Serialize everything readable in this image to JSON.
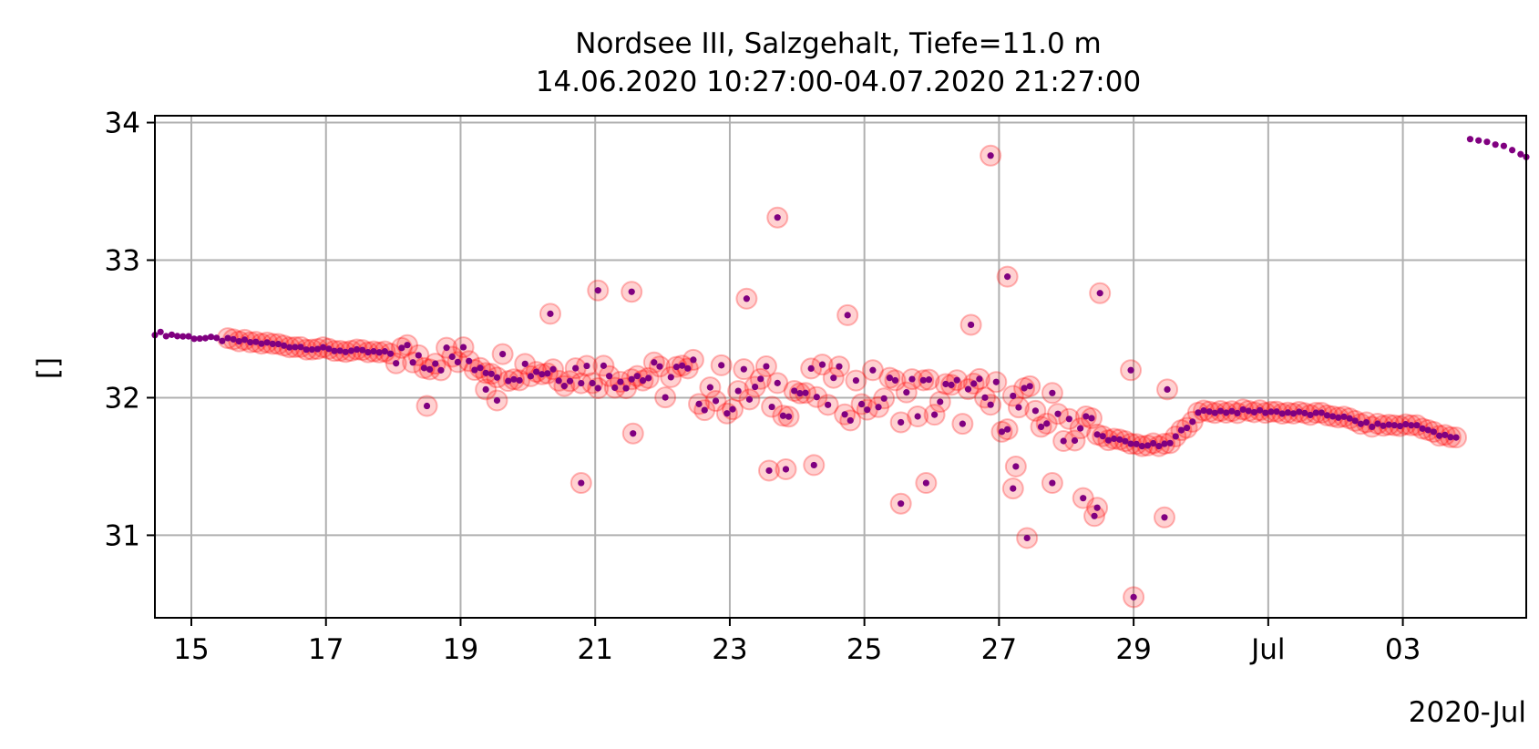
{
  "chart_data": {
    "type": "scatter",
    "title_lines": [
      "Nordsee III, Salzgehalt, Tiefe=11.0 m",
      "14.06.2020 10:27:00-04.07.2020 21:27:00"
    ],
    "xlabel": "",
    "ylabel": "[]",
    "x_offset_label": "2020-Jul",
    "xlim": [
      "2020-06-14T11:00",
      "2020-07-04T20:00"
    ],
    "ylim": [
      30.4,
      34.05
    ],
    "grid": true,
    "x_ticks": [
      {
        "date": "2020-06-15",
        "label": "15"
      },
      {
        "date": "2020-06-17",
        "label": "17"
      },
      {
        "date": "2020-06-19",
        "label": "19"
      },
      {
        "date": "2020-06-21",
        "label": "21"
      },
      {
        "date": "2020-06-23",
        "label": "23"
      },
      {
        "date": "2020-06-25",
        "label": "25"
      },
      {
        "date": "2020-06-27",
        "label": "27"
      },
      {
        "date": "2020-06-29",
        "label": "29"
      },
      {
        "date": "2020-07-01",
        "label": "Jul"
      },
      {
        "date": "2020-07-03",
        "label": "03"
      }
    ],
    "y_ticks": [
      31,
      32,
      33,
      34
    ],
    "colors": {
      "point": "#800080",
      "flag_ring": "#ff0000",
      "grid": "#b0b0b0"
    },
    "series": [
      {
        "role": "measurements",
        "trend": [
          {
            "x": "2020-06-14T11:00",
            "y": 32.47
          },
          {
            "x": "2020-06-15T00:00",
            "y": 32.44
          },
          {
            "x": "2020-06-16T00:00",
            "y": 32.4
          },
          {
            "x": "2020-06-17T00:00",
            "y": 32.35
          },
          {
            "x": "2020-06-18T00:00",
            "y": 32.32
          },
          {
            "x": "2020-06-19T00:00",
            "y": 32.28
          },
          {
            "x": "2020-06-20T00:00",
            "y": 32.22
          },
          {
            "x": "2020-06-21T00:00",
            "y": 32.18
          },
          {
            "x": "2020-06-22T00:00",
            "y": 32.15
          },
          {
            "x": "2020-06-23T00:00",
            "y": 32.05
          },
          {
            "x": "2020-06-24T00:00",
            "y": 32.05
          },
          {
            "x": "2020-06-25T00:00",
            "y": 32.03
          },
          {
            "x": "2020-06-26T00:00",
            "y": 32.0
          },
          {
            "x": "2020-06-27T00:00",
            "y": 31.95
          },
          {
            "x": "2020-06-28T00:00",
            "y": 31.85
          },
          {
            "x": "2020-06-28T12:00",
            "y": 31.72
          },
          {
            "x": "2020-06-29T00:00",
            "y": 31.66
          },
          {
            "x": "2020-06-29T12:00",
            "y": 31.65
          },
          {
            "x": "2020-06-30T00:00",
            "y": 31.9
          },
          {
            "x": "2020-07-01T00:00",
            "y": 31.9
          },
          {
            "x": "2020-07-02T00:00",
            "y": 31.87
          },
          {
            "x": "2020-07-02T12:00",
            "y": 31.8
          },
          {
            "x": "2020-07-03T06:00",
            "y": 31.8
          },
          {
            "x": "2020-07-03T12:00",
            "y": 31.73
          },
          {
            "x": "2020-07-03T20:00",
            "y": 31.7
          }
        ],
        "scatter_band": [
          {
            "from": "2020-06-18T00:00",
            "to": "2020-06-22T00:00",
            "spread": 0.12
          },
          {
            "from": "2020-06-22T00:00",
            "to": "2020-06-28T12:00",
            "spread": 0.2
          }
        ],
        "outliers": [
          {
            "x": "2020-06-18T12:00",
            "y": 31.94
          },
          {
            "x": "2020-06-19T09:00",
            "y": 32.06
          },
          {
            "x": "2020-06-19T13:00",
            "y": 31.98
          },
          {
            "x": "2020-06-20T08:00",
            "y": 32.61
          },
          {
            "x": "2020-06-20T19:00",
            "y": 31.38
          },
          {
            "x": "2020-06-21T01:00",
            "y": 32.78
          },
          {
            "x": "2020-06-21T13:00",
            "y": 32.77
          },
          {
            "x": "2020-06-21T13:30",
            "y": 31.74
          },
          {
            "x": "2020-06-23T06:00",
            "y": 32.72
          },
          {
            "x": "2020-06-23T14:00",
            "y": 31.47
          },
          {
            "x": "2020-06-23T17:00",
            "y": 33.31
          },
          {
            "x": "2020-06-23T20:00",
            "y": 31.48
          },
          {
            "x": "2020-06-24T06:00",
            "y": 31.51
          },
          {
            "x": "2020-06-24T18:00",
            "y": 32.6
          },
          {
            "x": "2020-06-25T13:00",
            "y": 31.23
          },
          {
            "x": "2020-06-25T22:00",
            "y": 31.38
          },
          {
            "x": "2020-06-26T14:00",
            "y": 32.53
          },
          {
            "x": "2020-06-26T21:00",
            "y": 33.76
          },
          {
            "x": "2020-06-27T03:00",
            "y": 32.88
          },
          {
            "x": "2020-06-27T05:00",
            "y": 31.34
          },
          {
            "x": "2020-06-27T06:00",
            "y": 31.5
          },
          {
            "x": "2020-06-27T10:00",
            "y": 30.98
          },
          {
            "x": "2020-06-27T19:00",
            "y": 31.38
          },
          {
            "x": "2020-06-28T06:00",
            "y": 31.27
          },
          {
            "x": "2020-06-28T10:00",
            "y": 31.14
          },
          {
            "x": "2020-06-28T11:00",
            "y": 31.2
          },
          {
            "x": "2020-06-28T12:00",
            "y": 32.76
          },
          {
            "x": "2020-06-28T23:00",
            "y": 32.2
          },
          {
            "x": "2020-06-29T00:00",
            "y": 30.55
          },
          {
            "x": "2020-06-29T11:00",
            "y": 31.13
          },
          {
            "x": "2020-06-29T12:00",
            "y": 32.06
          }
        ],
        "flag_ring_range": [
          "2020-06-15T12:00",
          "2020-07-03T20:00"
        ]
      },
      {
        "role": "unflagged-tail",
        "points": [
          {
            "x": "2020-07-04T00:00",
            "y": 33.88
          },
          {
            "x": "2020-07-04T03:00",
            "y": 33.87
          },
          {
            "x": "2020-07-04T06:00",
            "y": 33.86
          },
          {
            "x": "2020-07-04T09:00",
            "y": 33.84
          },
          {
            "x": "2020-07-04T12:00",
            "y": 33.83
          },
          {
            "x": "2020-07-04T15:00",
            "y": 33.8
          },
          {
            "x": "2020-07-04T18:00",
            "y": 33.77
          },
          {
            "x": "2020-07-04T20:00",
            "y": 33.75
          }
        ]
      }
    ]
  }
}
